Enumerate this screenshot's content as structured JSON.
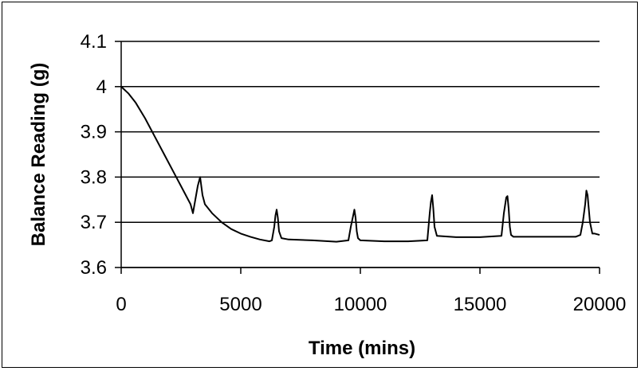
{
  "chart_data": {
    "type": "line",
    "title": "",
    "xlabel": "Time (mins)",
    "ylabel": "Balance Reading (g)",
    "xlim": [
      0,
      20000
    ],
    "ylim": [
      3.6,
      4.1
    ],
    "x_ticks": [
      0,
      5000,
      10000,
      15000,
      20000
    ],
    "x_tick_labels": [
      "0",
      "5000",
      "10000",
      "15000",
      "20000"
    ],
    "y_ticks": [
      3.6,
      3.7,
      3.8,
      3.9,
      4.0,
      4.1
    ],
    "y_tick_labels": [
      "3.6",
      "3.7",
      "3.8",
      "3.9",
      "4",
      "4.1"
    ],
    "grid": "horizontal",
    "legend": "none",
    "line_color": "#000000",
    "series": [
      {
        "x": [
          0,
          100,
          300,
          600,
          1000,
          1400,
          1800,
          2200,
          2600,
          2900,
          3000,
          3100,
          3200,
          3300,
          3400,
          3500,
          3800,
          4200,
          4600,
          5000,
          5400,
          5800,
          6200,
          6300,
          6400,
          6450,
          6500,
          6550,
          6600,
          6700,
          7000,
          8000,
          9000,
          9500,
          9600,
          9700,
          9750,
          9800,
          9850,
          9900,
          10000,
          11000,
          12000,
          12800,
          12900,
          12950,
          13000,
          13050,
          13100,
          13200,
          14000,
          15000,
          15900,
          16000,
          16100,
          16150,
          16200,
          16250,
          16300,
          16400,
          17000,
          18000,
          19000,
          19200,
          19300,
          19400,
          19450,
          19500,
          19550,
          19600,
          19700,
          19800,
          20000
        ],
        "y": [
          4.0,
          3.995,
          3.985,
          3.965,
          3.93,
          3.89,
          3.85,
          3.81,
          3.77,
          3.74,
          3.72,
          3.75,
          3.78,
          3.8,
          3.76,
          3.74,
          3.72,
          3.7,
          3.685,
          3.675,
          3.668,
          3.662,
          3.658,
          3.66,
          3.69,
          3.715,
          3.728,
          3.71,
          3.68,
          3.665,
          3.662,
          3.66,
          3.657,
          3.66,
          3.69,
          3.715,
          3.728,
          3.71,
          3.68,
          3.665,
          3.66,
          3.658,
          3.658,
          3.66,
          3.72,
          3.745,
          3.76,
          3.73,
          3.69,
          3.67,
          3.667,
          3.667,
          3.67,
          3.72,
          3.755,
          3.758,
          3.73,
          3.69,
          3.672,
          3.668,
          3.668,
          3.668,
          3.668,
          3.672,
          3.7,
          3.74,
          3.77,
          3.76,
          3.73,
          3.7,
          3.675,
          3.675,
          3.672
        ]
      }
    ]
  }
}
